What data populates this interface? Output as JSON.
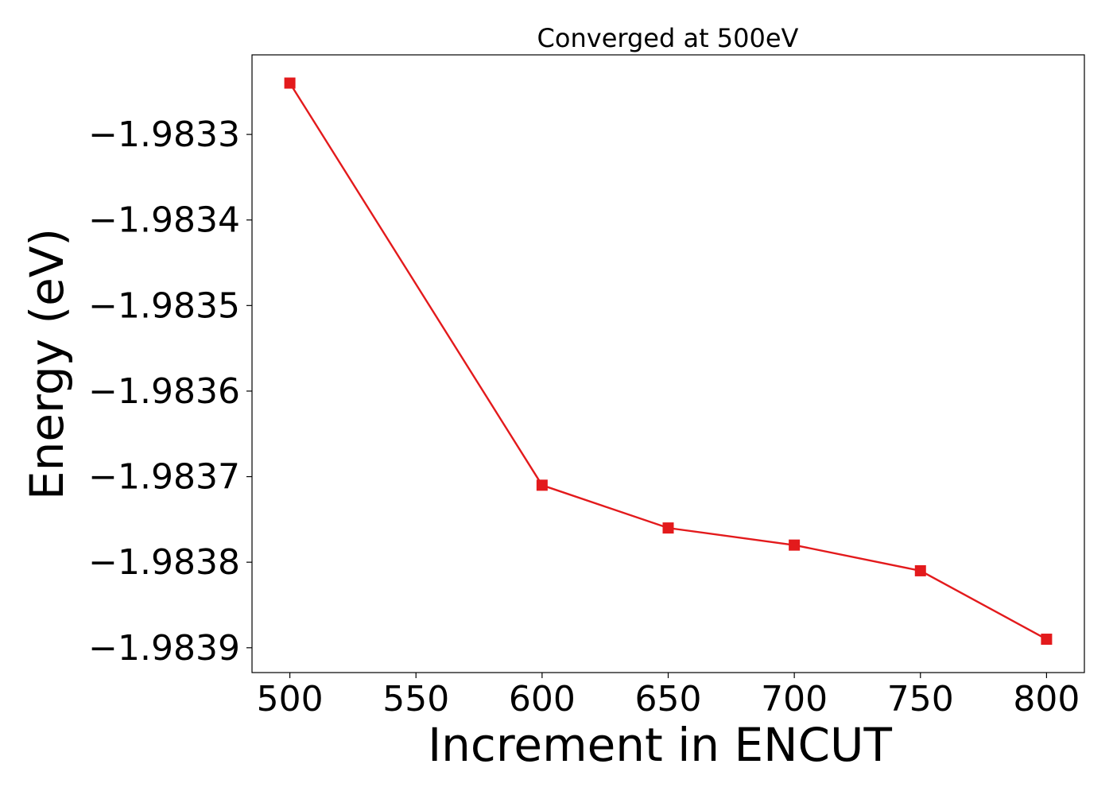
{
  "chart_data": {
    "type": "line",
    "title": "Converged at 500eV",
    "xlabel": "Increment in ENCUT",
    "ylabel": "Energy (eV)",
    "x": [
      500,
      600,
      650,
      700,
      750,
      800
    ],
    "series": [
      {
        "values": [
          -1.98324,
          -1.98371,
          -1.98376,
          -1.98378,
          -1.98381,
          -1.98389
        ],
        "color": "#e31a1c",
        "marker": "square"
      }
    ],
    "xticks": [
      500,
      550,
      600,
      650,
      700,
      750,
      800
    ],
    "xtick_labels": [
      "500",
      "550",
      "600",
      "650",
      "700",
      "750",
      "800"
    ],
    "yticks": [
      -1.9833,
      -1.9834,
      -1.9835,
      -1.9836,
      -1.9837,
      -1.9838,
      -1.9839
    ],
    "ytick_labels": [
      "−1.9833",
      "−1.9834",
      "−1.9835",
      "−1.9836",
      "−1.9837",
      "−1.9838",
      "−1.9839"
    ],
    "xlim": [
      485,
      815
    ],
    "ylim": [
      -1.983929,
      -1.983207
    ],
    "grid": false
  }
}
